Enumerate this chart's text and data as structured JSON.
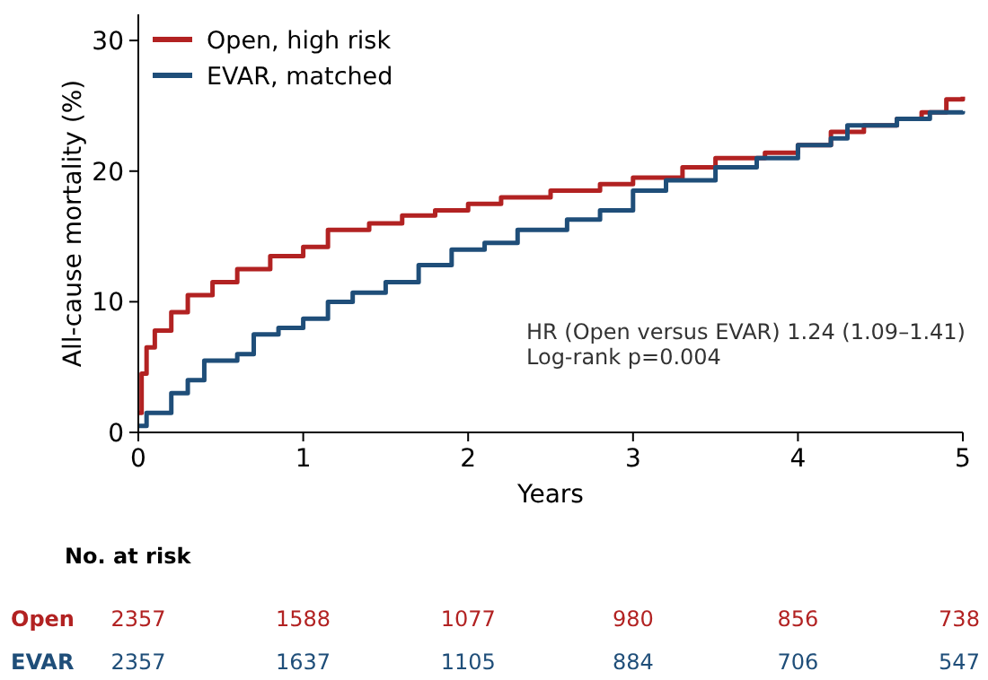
{
  "chart_data": {
    "type": "step",
    "xlabel": "Years",
    "ylabel": "All-cause mortality (%)",
    "xlim": [
      0,
      5
    ],
    "ylim": [
      0,
      32
    ],
    "xticks": [
      0,
      1,
      2,
      3,
      4,
      5
    ],
    "yticks": [
      0,
      10,
      20,
      30
    ],
    "legend": "top left",
    "grid": false,
    "series": [
      {
        "name": "Open, high risk",
        "color": "#b22222",
        "x": [
          0,
          0.02,
          0.05,
          0.1,
          0.2,
          0.3,
          0.45,
          0.6,
          0.8,
          1.0,
          1.15,
          1.4,
          1.6,
          1.8,
          2.0,
          2.2,
          2.5,
          2.8,
          3.0,
          3.3,
          3.5,
          3.8,
          4.0,
          4.2,
          4.4,
          4.6,
          4.75,
          4.9,
          5.0
        ],
        "values": [
          1.5,
          4.5,
          6.5,
          7.8,
          9.2,
          10.5,
          11.5,
          12.5,
          13.5,
          14.2,
          15.5,
          16,
          16.6,
          17,
          17.5,
          18,
          18.5,
          19,
          19.5,
          20.3,
          21,
          21.4,
          22,
          23,
          23.5,
          24,
          24.5,
          25.5,
          25.7
        ]
      },
      {
        "name": "EVAR, matched",
        "color": "#1f4e79",
        "x": [
          0,
          0.05,
          0.2,
          0.3,
          0.4,
          0.6,
          0.7,
          0.85,
          1.0,
          1.15,
          1.3,
          1.5,
          1.7,
          1.9,
          2.1,
          2.3,
          2.6,
          2.8,
          3.0,
          3.2,
          3.5,
          3.75,
          4.0,
          4.2,
          4.3,
          4.6,
          4.8,
          5.0
        ],
        "values": [
          0.5,
          1.5,
          3,
          4,
          5.5,
          6,
          7.5,
          8,
          8.7,
          10,
          10.7,
          11.5,
          12.8,
          14,
          14.5,
          15.5,
          16.3,
          17,
          18.5,
          19.3,
          20.3,
          21,
          22,
          22.5,
          23.5,
          24,
          24.5,
          24.6
        ]
      }
    ],
    "annotations": [
      "HR (Open versus EVAR) 1.24 (1.09–1.41)",
      "Log-rank p=0.004",
      "No. at risk",
      "Open",
      "2357",
      "1588",
      "1077",
      "980",
      "856",
      "738",
      "EVAR",
      "2357",
      "1637",
      "1105",
      "884",
      "706",
      "547"
    ]
  }
}
